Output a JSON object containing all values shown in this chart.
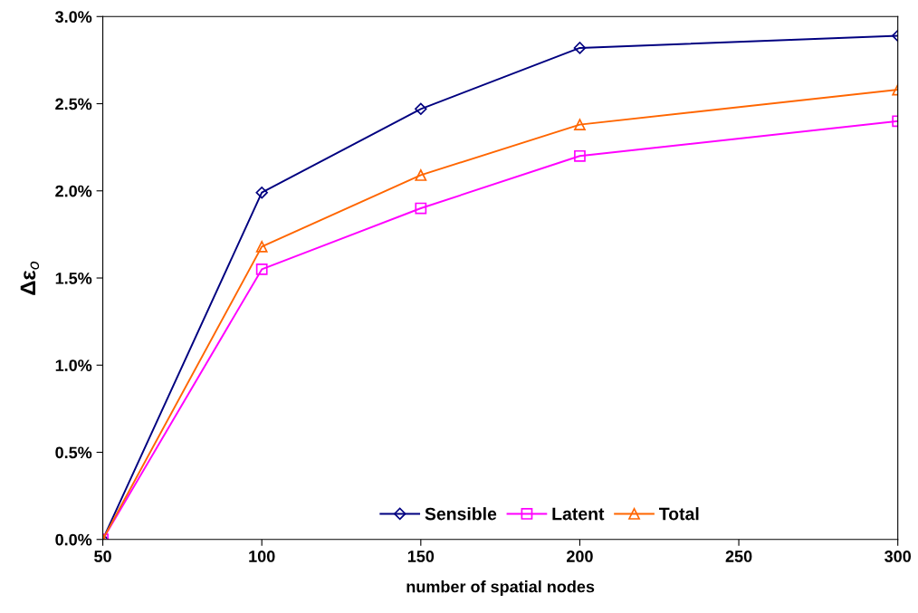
{
  "chart_data": {
    "type": "line",
    "xlabel": "number of spatial nodes",
    "ylabel": "Δε$_{o}$",
    "x": [
      50,
      100,
      150,
      200,
      300
    ],
    "series": [
      {
        "name": "Sensible",
        "color": "#000080",
        "marker": "diamond",
        "values": [
          0,
          1.99,
          2.47,
          2.82,
          2.89
        ]
      },
      {
        "name": "Latent",
        "color": "#ff00ff",
        "marker": "square",
        "values": [
          0,
          1.55,
          1.9,
          2.2,
          2.4
        ]
      },
      {
        "name": "Total",
        "color": "#ff6600",
        "marker": "triangle",
        "values": [
          0,
          1.68,
          2.09,
          2.38,
          2.58
        ]
      }
    ],
    "xlim": [
      50,
      300
    ],
    "xticks": [
      50,
      100,
      150,
      200,
      250,
      300
    ],
    "ylim": [
      0,
      3
    ],
    "yticks": [
      {
        "value": 0,
        "label": "0.0%"
      },
      {
        "value": 0.5,
        "label": "0.5%"
      },
      {
        "value": 1,
        "label": "1.0%"
      },
      {
        "value": 1.5,
        "label": "1.5%"
      },
      {
        "value": 2,
        "label": "2.0%"
      },
      {
        "value": 2.5,
        "label": "2.5%"
      },
      {
        "value": 3,
        "label": "3.0%"
      }
    ],
    "grid": false,
    "legend": "bottom",
    "line_style": "solid"
  }
}
